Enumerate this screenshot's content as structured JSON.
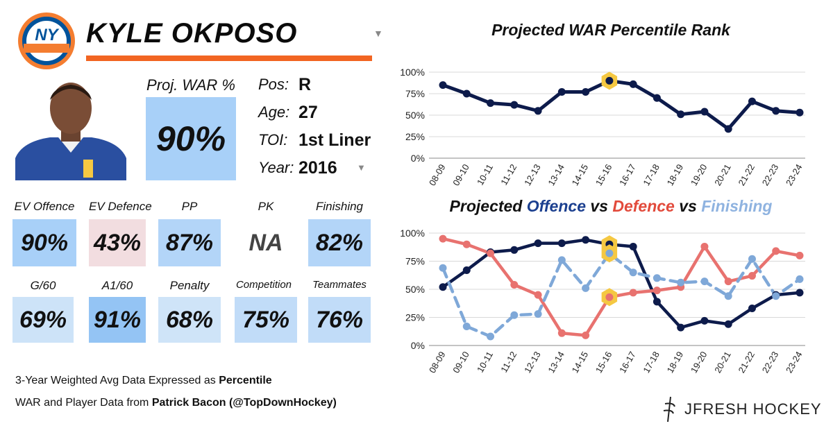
{
  "header": {
    "team_logo": "ny-islanders-logo",
    "player_name": "KYLE OKPOSO"
  },
  "war": {
    "label": "Proj. WAR %",
    "value": "90%"
  },
  "info": [
    {
      "key": "Pos:",
      "value": "R"
    },
    {
      "key": "Age:",
      "value": "27"
    },
    {
      "key": "TOI:",
      "value": "1st Liner"
    },
    {
      "key": "Year:",
      "value": "2016"
    }
  ],
  "stats": [
    {
      "label": "EV Offence",
      "value": "90%",
      "color": "#a8d0f8"
    },
    {
      "label": "EV Defence",
      "value": "43%",
      "color": "#f2dde0"
    },
    {
      "label": "PP",
      "value": "87%",
      "color": "#b3d5f8"
    },
    {
      "label": "PK",
      "value": "NA",
      "color": "#ffffff"
    },
    {
      "label": "Finishing",
      "value": "82%",
      "color": "#b3d5f8"
    },
    {
      "label": "G/60",
      "value": "69%",
      "color": "#cde3f8"
    },
    {
      "label": "A1/60",
      "value": "91%",
      "color": "#94c4f4"
    },
    {
      "label": "Penalty",
      "value": "68%",
      "color": "#cfe4f8"
    },
    {
      "label": "Competition",
      "value": "75%",
      "color": "#c1dcf8"
    },
    {
      "label": "Teammates",
      "value": "76%",
      "color": "#c1dcf8"
    }
  ],
  "footnotes": {
    "line1_prefix": "3-Year Weighted Avg Data Expressed as ",
    "line1_bold": "Percentile",
    "line2_prefix": "WAR and Player Data from ",
    "line2_bold": "Patrick Bacon (@TopDownHockey)"
  },
  "brand": {
    "name": "JFRESH HOCKEY"
  },
  "colors": {
    "navy": "#0d1b4b",
    "red": "#e8726f",
    "light_blue": "#7fa8d8",
    "highlight": "#f5c842",
    "orange": "#f26522"
  },
  "chart_data": [
    {
      "type": "line",
      "title": "Projected WAR Percentile Rank",
      "categories": [
        "08-09",
        "09-10",
        "10-11",
        "11-12",
        "12-13",
        "13-14",
        "14-15",
        "15-16",
        "16-17",
        "17-18",
        "18-19",
        "19-20",
        "20-21",
        "21-22",
        "22-23",
        "23-24"
      ],
      "series": [
        {
          "name": "WAR",
          "values": [
            85,
            75,
            64,
            62,
            55,
            77,
            77,
            90,
            86,
            70,
            51,
            54,
            34,
            66,
            55,
            53
          ]
        }
      ],
      "highlight_index": 7,
      "ylim": [
        0,
        100
      ],
      "yticks": [
        "0%",
        "25%",
        "50%",
        "75%",
        "100%"
      ]
    },
    {
      "type": "line",
      "title": "Projected Offence vs Defence vs Finishing",
      "title_parts": [
        {
          "text": "Projected ",
          "color": "#111111"
        },
        {
          "text": "Offence",
          "color": "#1b3f8f"
        },
        {
          "text": " vs ",
          "color": "#111111"
        },
        {
          "text": "Defence",
          "color": "#e24a3b"
        },
        {
          "text": " vs ",
          "color": "#111111"
        },
        {
          "text": "Finishing",
          "color": "#8fb3e0"
        }
      ],
      "categories": [
        "08-09",
        "09-10",
        "10-11",
        "11-12",
        "12-13",
        "13-14",
        "14-15",
        "15-16",
        "16-17",
        "17-18",
        "18-19",
        "19-20",
        "20-21",
        "21-22",
        "22-23",
        "23-24"
      ],
      "series": [
        {
          "name": "Offence",
          "values": [
            52,
            67,
            83,
            85,
            91,
            91,
            94,
            90,
            88,
            39,
            16,
            22,
            19,
            33,
            45,
            47
          ]
        },
        {
          "name": "Defence",
          "values": [
            95,
            90,
            82,
            54,
            45,
            11,
            9,
            43,
            47,
            49,
            52,
            88,
            57,
            62,
            84,
            80
          ]
        },
        {
          "name": "Finishing",
          "values": [
            69,
            17,
            8,
            27,
            28,
            76,
            51,
            82,
            65,
            60,
            56,
            57,
            44,
            77,
            44,
            59
          ]
        }
      ],
      "highlight_index": 7,
      "ylim": [
        0,
        100
      ],
      "yticks": [
        "0%",
        "25%",
        "50%",
        "75%",
        "100%"
      ]
    }
  ]
}
